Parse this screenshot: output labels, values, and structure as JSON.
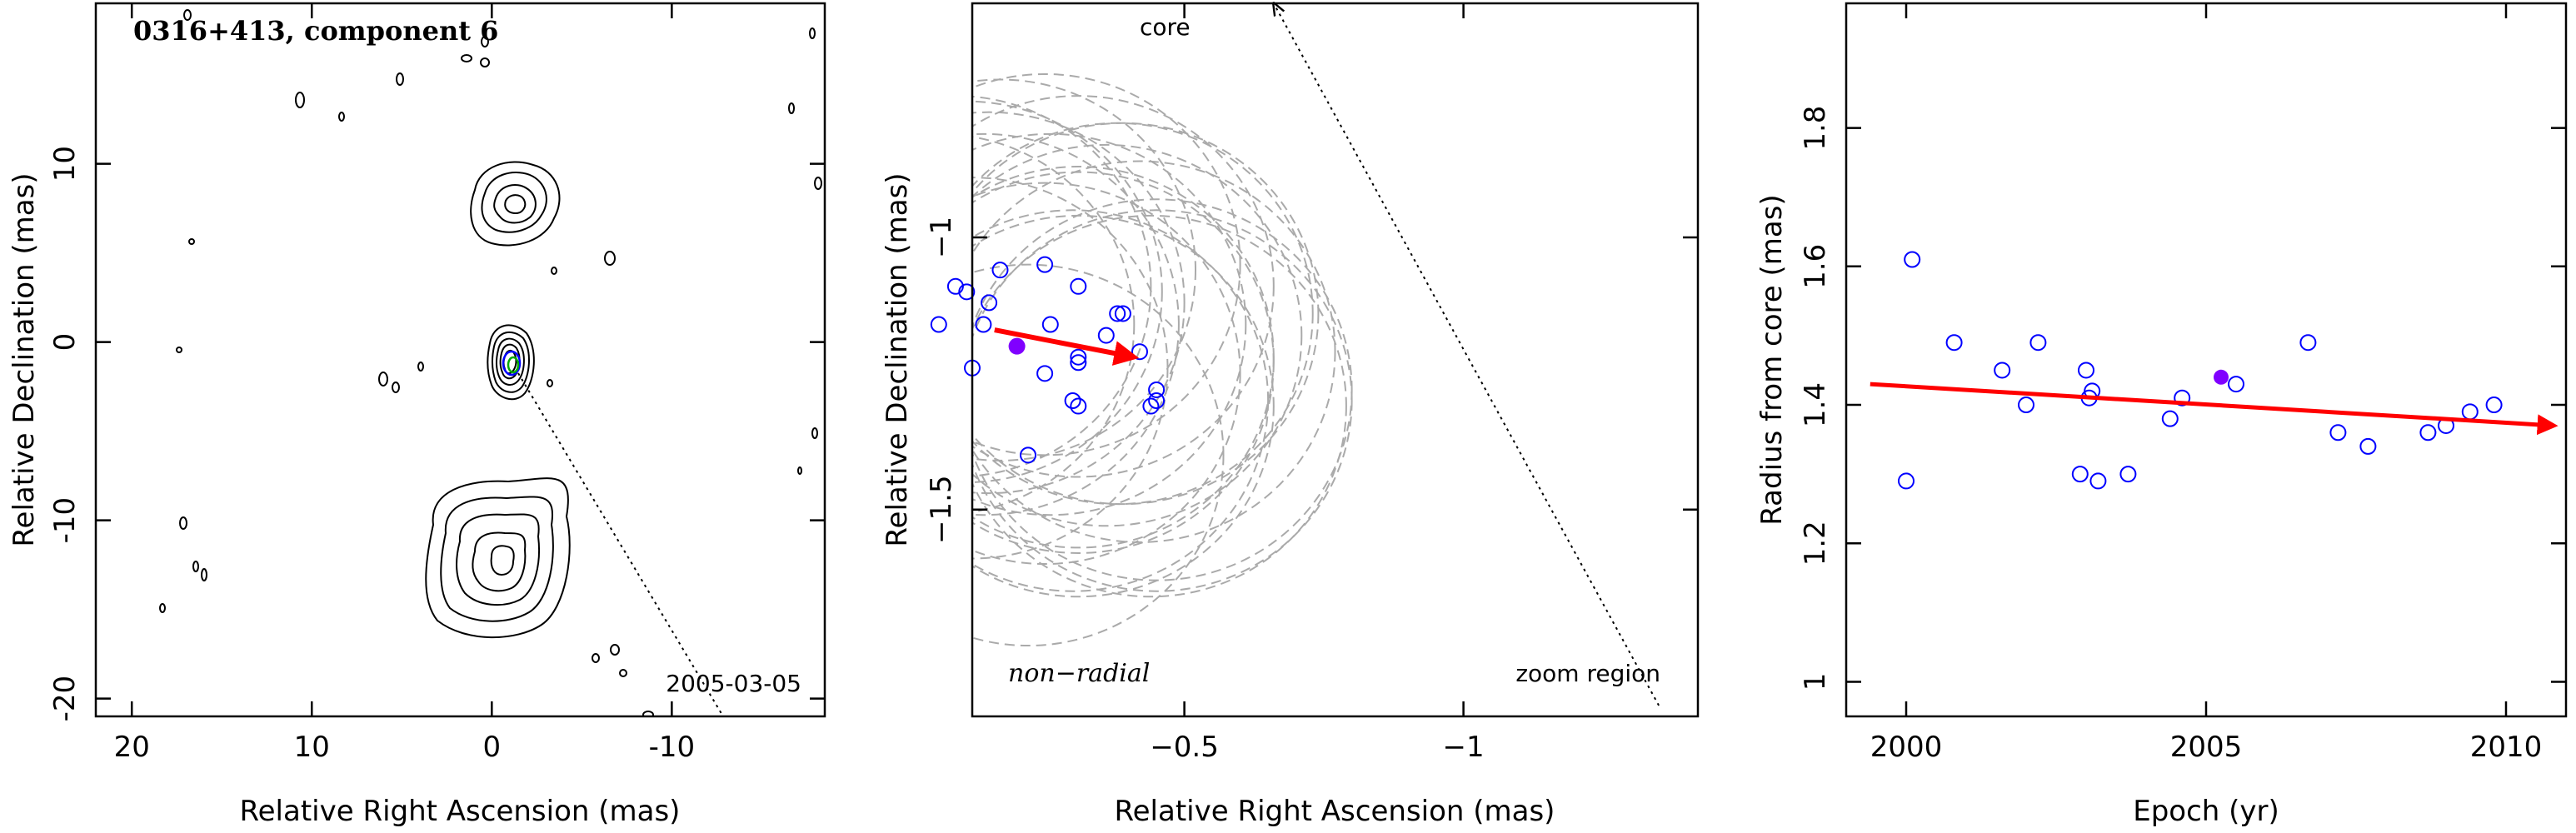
{
  "chart_data": [
    {
      "type": "contour",
      "title": "0316+413, component 6",
      "date_label": "2005-03-05",
      "xlabel": "Relative Right Ascension (mas)",
      "ylabel": "Relative Declination (mas)",
      "xlim": [
        22,
        -18.5
      ],
      "ylim": [
        -21,
        19
      ],
      "xticks": [
        20,
        10,
        0,
        -10
      ],
      "yticks": [
        -20,
        -10,
        0,
        10
      ],
      "colors": {
        "contour": "#000000",
        "component_a": "#0000ff",
        "component_b": "#00aa00"
      }
    },
    {
      "type": "scatter",
      "label_core": "core",
      "label_zoom": "zoom region",
      "label_motion": "non−radial",
      "xlabel": "Relative Right Ascension (mas)",
      "ylabel": "Relative Declination (mas)",
      "xlim": [
        -0.12,
        -1.42
      ],
      "ylim": [
        -1.88,
        -0.57
      ],
      "xticks": [
        -0.5,
        -1
      ],
      "xtick_labels": [
        "−0.5",
        "−1"
      ],
      "yticks": [
        -1,
        -1.5
      ],
      "ytick_labels": [
        "−1",
        "−1.5"
      ],
      "points": [
        [
          -0.42,
          -1.21
        ],
        [
          -0.38,
          -1.14
        ],
        [
          -0.39,
          -1.14
        ],
        [
          -0.31,
          -1.09
        ],
        [
          -0.25,
          -1.05
        ],
        [
          -0.17,
          -1.06
        ],
        [
          -0.11,
          -1.1
        ],
        [
          -0.09,
          -1.09
        ],
        [
          -0.15,
          -1.12
        ],
        [
          -0.26,
          -1.16
        ],
        [
          -0.36,
          -1.18
        ],
        [
          -0.31,
          -1.22
        ],
        [
          -0.31,
          -1.23
        ],
        [
          -0.25,
          -1.25
        ],
        [
          -0.14,
          -1.16
        ],
        [
          -0.12,
          -1.24
        ],
        [
          -0.06,
          -1.16
        ],
        [
          -0.45,
          -1.28
        ],
        [
          -0.44,
          -1.31
        ],
        [
          -0.45,
          -1.3
        ],
        [
          -0.3,
          -1.3
        ],
        [
          -0.31,
          -1.31
        ],
        [
          -0.22,
          -1.4
        ]
      ],
      "highlight_point": [
        -0.2,
        -1.2
      ],
      "motion_arrow": {
        "from": [
          -0.16,
          -1.17
        ],
        "to": [
          -0.41,
          -1.22
        ]
      },
      "core_line": {
        "from": [
          -1.35,
          -1.86
        ],
        "to": [
          -0.66,
          -0.57
        ]
      },
      "ellipse_radius": 0.35,
      "colors": {
        "points": "#0000ff",
        "highlight": "#8000ff",
        "arrow": "#ff0000",
        "ellipses": "#aaaaaa"
      }
    },
    {
      "type": "scatter",
      "xlabel": "Epoch (yr)",
      "ylabel": "Radius from core (mas)",
      "xlim": [
        1999,
        2011
      ],
      "ylim": [
        0.95,
        1.98
      ],
      "xticks": [
        2000,
        2005,
        2010
      ],
      "yticks": [
        1,
        1.2,
        1.4,
        1.6,
        1.8
      ],
      "ytick_labels": [
        "1",
        "1.2",
        "1.4",
        "1.6",
        "1.8"
      ],
      "points": [
        [
          2000.0,
          1.29
        ],
        [
          2000.1,
          1.61
        ],
        [
          2000.8,
          1.49
        ],
        [
          2001.6,
          1.45
        ],
        [
          2002.0,
          1.4
        ],
        [
          2002.2,
          1.49
        ],
        [
          2002.9,
          1.3
        ],
        [
          2003.0,
          1.45
        ],
        [
          2003.05,
          1.41
        ],
        [
          2003.1,
          1.42
        ],
        [
          2003.2,
          1.29
        ],
        [
          2003.7,
          1.3
        ],
        [
          2004.4,
          1.38
        ],
        [
          2004.6,
          1.41
        ],
        [
          2005.5,
          1.43
        ],
        [
          2006.7,
          1.49
        ],
        [
          2007.2,
          1.36
        ],
        [
          2007.7,
          1.34
        ],
        [
          2008.7,
          1.36
        ],
        [
          2009.0,
          1.37
        ],
        [
          2009.4,
          1.39
        ],
        [
          2009.8,
          1.4
        ]
      ],
      "highlight_point": [
        2005.25,
        1.44
      ],
      "trend_arrow": {
        "from": [
          1999.4,
          1.43
        ],
        "to": [
          2010.8,
          1.37
        ]
      },
      "colors": {
        "points": "#0000ff",
        "highlight": "#8000ff",
        "arrow": "#ff0000"
      }
    }
  ]
}
